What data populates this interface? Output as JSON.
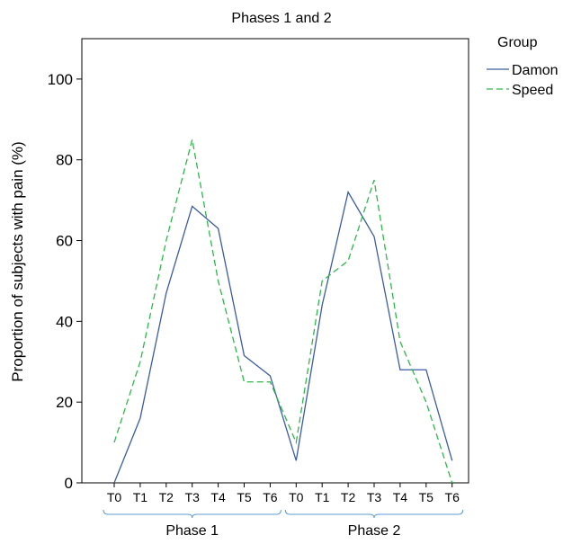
{
  "chart_data": {
    "type": "line",
    "title": "Phases 1 and 2",
    "ylabel": "Proportion of subjects with pain (%)",
    "xlabel": "",
    "ylim": [
      0,
      110
    ],
    "yticks": [
      0,
      20,
      40,
      60,
      80,
      100
    ],
    "grid": false,
    "categories": [
      "T0",
      "T1",
      "T2",
      "T3",
      "T4",
      "T5",
      "T6",
      "T0",
      "T1",
      "T2",
      "T3",
      "T4",
      "T5",
      "T6"
    ],
    "groups": [
      {
        "label": "Phase 1",
        "start": 0,
        "end": 6
      },
      {
        "label": "Phase 2",
        "start": 7,
        "end": 13
      }
    ],
    "legend": {
      "title": "Group",
      "placement": "top-right-outside"
    },
    "series": [
      {
        "name": "Damon",
        "color": "#3b5ba5",
        "dash": "solid",
        "values": [
          0,
          16,
          47,
          68.5,
          63,
          31.5,
          26.5,
          5.5,
          44,
          72,
          61,
          28,
          28,
          5.5
        ]
      },
      {
        "name": "Speed",
        "color": "#2db84a",
        "dash": "dashed",
        "values": [
          10,
          30,
          60,
          85,
          50,
          25,
          25,
          10,
          50,
          55,
          75,
          35,
          20,
          0
        ]
      }
    ]
  }
}
